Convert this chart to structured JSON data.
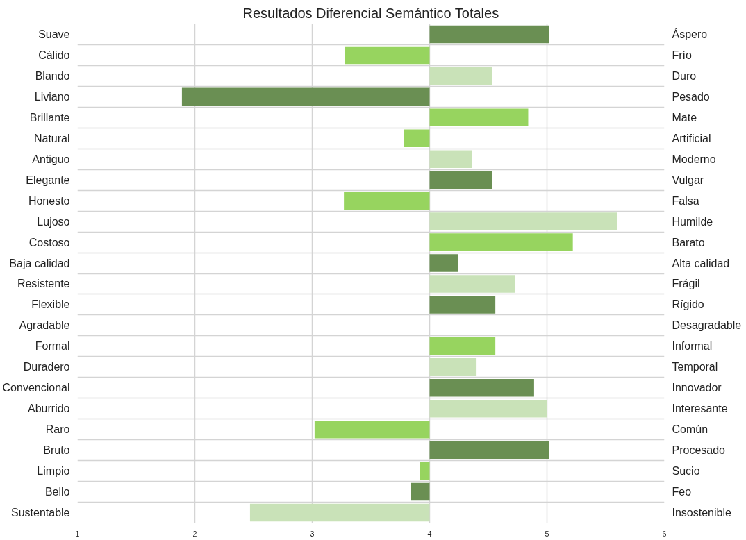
{
  "chart_data": {
    "type": "bar",
    "orientation": "horizontal",
    "title": "Resultados Diferencial Semántico Totales",
    "categories": [
      "Suave",
      "Cálido",
      "Blando",
      "Liviano",
      "Brillante",
      "Natural",
      "Antiguo",
      "Elegante",
      "Honesto",
      "Lujoso",
      "Costoso",
      "Baja calidad",
      "Resistente",
      "Flexible",
      "Agradable",
      "Formal",
      "Duradero",
      "Convencional",
      "Aburrido",
      "Raro",
      "Bruto",
      "Limpio",
      "Bello",
      "Sustentable"
    ],
    "y2_categories": [
      "Áspero",
      "Frío",
      "Duro",
      "Pesado",
      "Mate",
      "Artificial",
      "Moderno",
      "Vulgar",
      "Falsa",
      "Humilde",
      "Barato",
      "Alta calidad",
      "Frágil",
      "Rígido",
      "Desagradable",
      "Informal",
      "Temporal",
      "Innovador",
      "Interesante",
      "Común",
      "Procesado",
      "Sucio",
      "Feo",
      "Insostenible"
    ],
    "base": [
      4,
      4,
      4,
      4,
      4,
      4,
      4,
      4,
      4,
      4,
      4,
      4,
      4,
      4,
      null,
      4,
      4,
      4,
      4,
      4,
      4,
      4,
      4,
      4
    ],
    "values": [
      1.02,
      -0.72,
      0.53,
      -2.11,
      0.84,
      -0.22,
      0.36,
      0.53,
      -0.73,
      1.6,
      1.22,
      0.24,
      0.73,
      0.56,
      null,
      0.56,
      0.4,
      0.89,
      1.0,
      -0.98,
      1.02,
      -0.08,
      -0.16,
      -1.53
    ],
    "colors": [
      "#6a8f53",
      "#97d45f",
      "#c9e2b8",
      "#6a8f53",
      "#97d45f",
      "#97d45f",
      "#c9e2b8",
      "#6a8f53",
      "#97d45f",
      "#c9e2b8",
      "#97d45f",
      "#6a8f53",
      "#c9e2b8",
      "#6a8f53",
      "#c9e2b8",
      "#97d45f",
      "#c9e2b8",
      "#6a8f53",
      "#c9e2b8",
      "#97d45f",
      "#6a8f53",
      "#97d45f",
      "#6a8f53",
      "#c9e2b8"
    ],
    "xlim": [
      1,
      6
    ],
    "xticks": [
      1,
      2,
      3,
      4,
      5,
      6
    ],
    "grid": true
  }
}
